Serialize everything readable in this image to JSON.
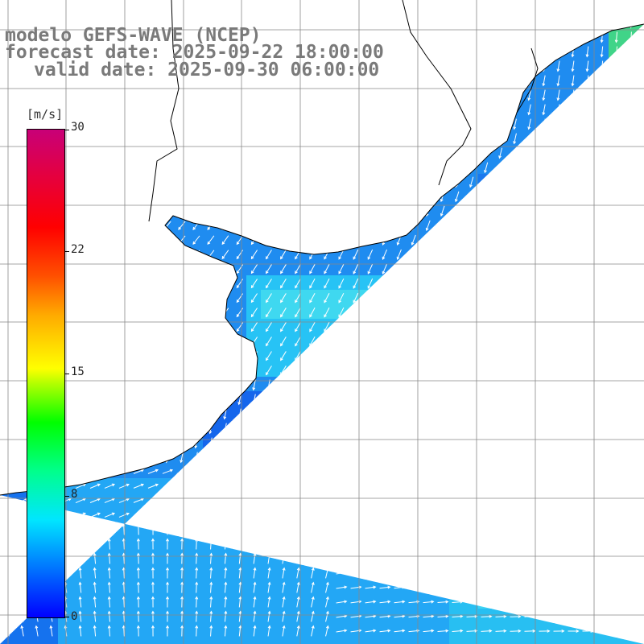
{
  "title": {
    "line1": "modelo GEFS-WAVE (NCEP)",
    "line2": "forecast date: 2025-09-22 18:00:00",
    "line3": "valid date: 2025-09-30 06:00:00"
  },
  "colorbar": {
    "unit": "[m/s]",
    "labels": [
      {
        "text": "30",
        "value": 30
      },
      {
        "text": "22",
        "value": 22
      },
      {
        "text": "15",
        "value": 15
      },
      {
        "text": "8",
        "value": 8
      },
      {
        "text": "0",
        "value": 0
      }
    ],
    "min": 0,
    "max": 30
  },
  "map": {
    "land_color": "#ffffff",
    "grid_color": "#808080",
    "coast_color": "#000000",
    "arrow_color": "#ffffff"
  }
}
